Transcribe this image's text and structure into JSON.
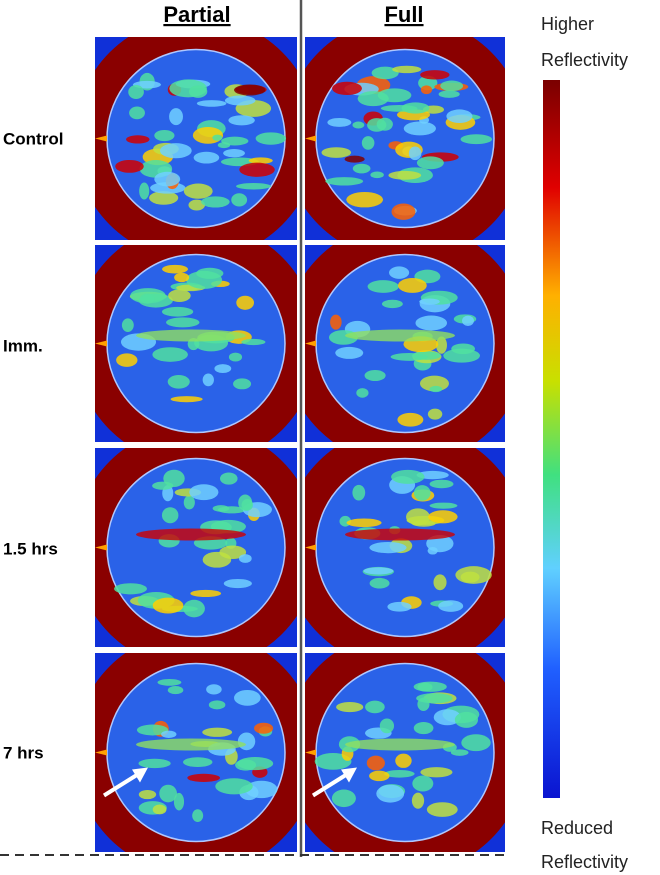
{
  "header": {
    "columns": [
      "Partial",
      "Full"
    ]
  },
  "rows": [
    "Control",
    "Imm.",
    "1.5 hrs",
    "7 hrs"
  ],
  "colorbar": {
    "top": [
      "Higher",
      "Reflectivity"
    ],
    "bottom": [
      "Reduced",
      "Reflectivity"
    ]
  }
}
